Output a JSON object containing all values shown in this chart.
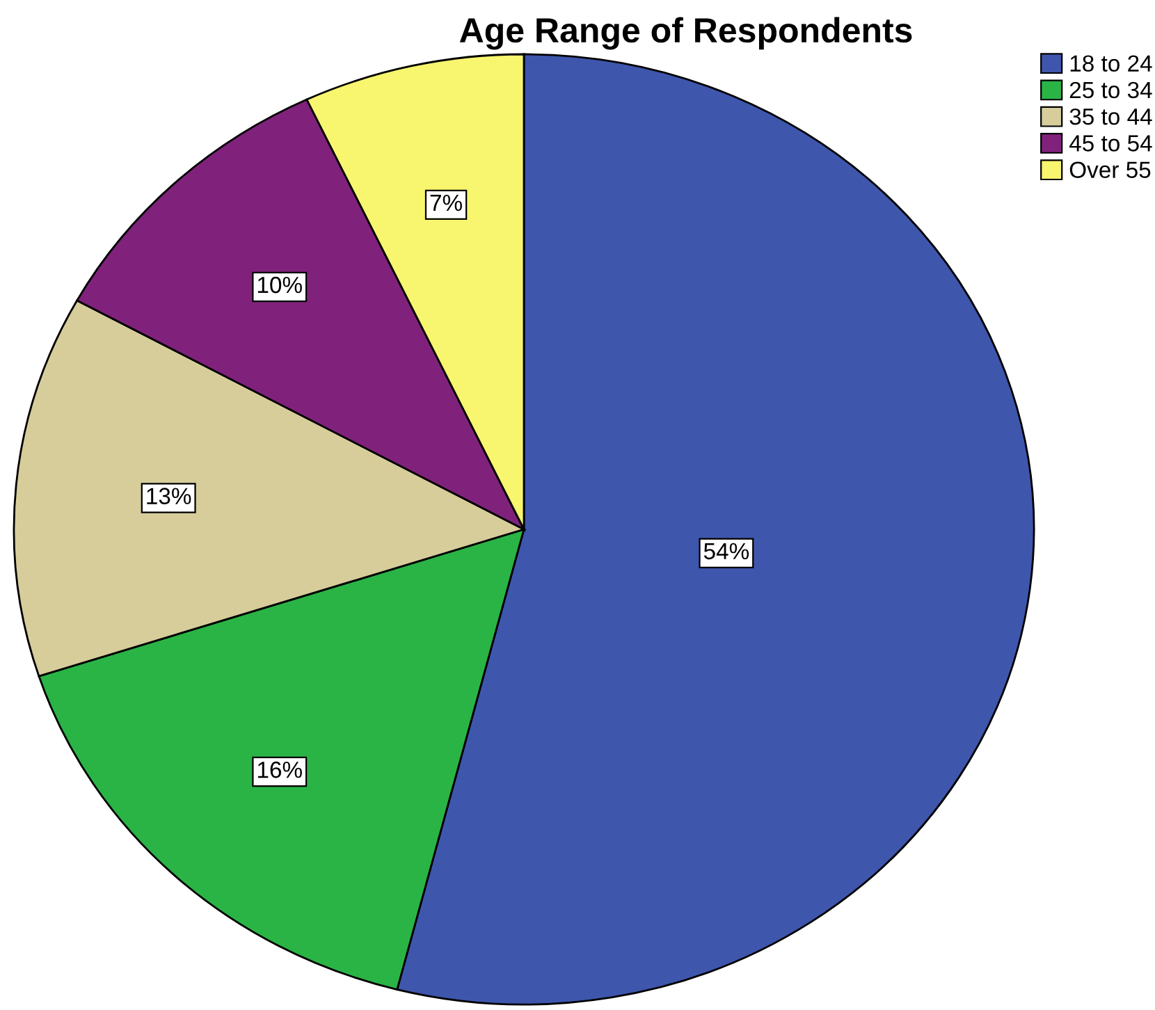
{
  "chart_data": {
    "type": "pie",
    "title": "Age Range of Respondents",
    "categories": [
      "18 to 24",
      "25 to 34",
      "35 to 44",
      "45 to 54",
      "Over 55"
    ],
    "values": [
      54,
      16,
      13,
      10,
      7
    ],
    "colors": [
      "#3f56ad",
      "#2ab446",
      "#d6cd9b",
      "#80227c",
      "#f8f56f"
    ],
    "value_labels": [
      "54%",
      "16%",
      "13%",
      "10%",
      "7%"
    ],
    "legend": "top right"
  }
}
